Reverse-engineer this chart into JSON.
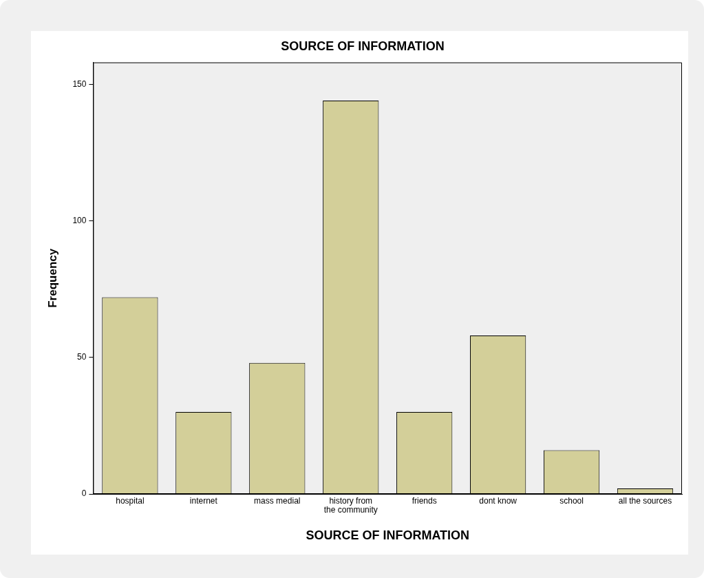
{
  "chart_data": {
    "type": "bar",
    "title": "SOURCE OF INFORMATION",
    "xlabel": "SOURCE OF INFORMATION",
    "ylabel": "Frequency",
    "categories": [
      "hospital",
      "internet",
      "mass medial",
      "history from the community",
      "friends",
      "dont know",
      "school",
      "all the sources"
    ],
    "values": [
      72,
      30,
      48,
      144,
      30,
      58,
      16,
      2
    ],
    "color": "#d3cf99",
    "ylim": [
      0,
      158
    ],
    "yticks": [
      0,
      50,
      100,
      150
    ],
    "grid": false,
    "legend": false
  }
}
